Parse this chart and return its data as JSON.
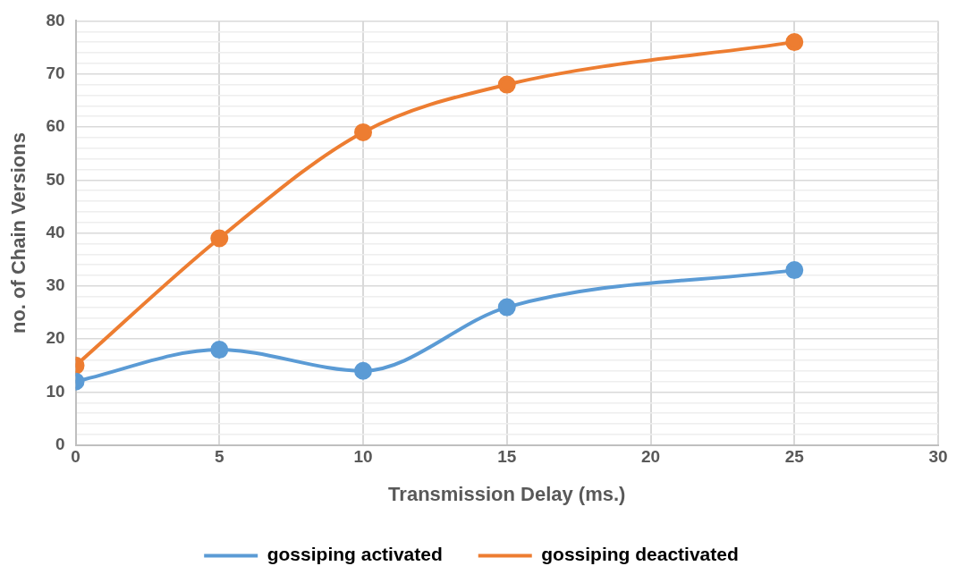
{
  "chart_data": {
    "type": "line",
    "xlabel": "Transmission Delay (ms.)",
    "ylabel": "no. of Chain Versions",
    "x": [
      0,
      5,
      10,
      15,
      25
    ],
    "series": [
      {
        "name": "gossiping activated",
        "color": "#5b9bd5",
        "values": [
          12,
          18,
          14,
          26,
          33
        ]
      },
      {
        "name": "gossiping deactivated",
        "color": "#ed7d31",
        "values": [
          15,
          39,
          59,
          68,
          76
        ]
      }
    ],
    "xlim": [
      0,
      30
    ],
    "xticks": [
      0,
      5,
      10,
      15,
      20,
      25,
      30
    ],
    "ylim": [
      0,
      80
    ],
    "yticks": [
      0,
      {
        "value": 2,
        "label": null
      },
      {
        "value": 4,
        "label": null
      },
      {
        "value": 6,
        "label": null
      },
      {
        "value": 8,
        "label": null
      },
      10,
      {
        "value": 12,
        "label": null
      },
      {
        "value": 14,
        "label": null
      },
      {
        "value": 16,
        "label": null
      },
      {
        "value": 18,
        "label": null
      },
      20,
      {
        "value": 22,
        "label": null
      },
      {
        "value": 24,
        "label": null
      },
      {
        "value": 26,
        "label": null
      },
      {
        "value": 28,
        "label": null
      },
      30,
      {
        "value": 32,
        "label": null
      },
      {
        "value": 34,
        "label": null
      },
      {
        "value": 36,
        "label": null
      },
      {
        "value": 38,
        "label": null
      },
      40,
      {
        "value": 42,
        "label": null
      },
      {
        "value": 44,
        "label": null
      },
      {
        "value": 46,
        "label": null
      },
      {
        "value": 48,
        "label": null
      },
      50,
      {
        "value": 52,
        "label": null
      },
      {
        "value": 54,
        "label": null
      },
      {
        "value": 56,
        "label": null
      },
      {
        "value": 58,
        "label": null
      },
      60,
      {
        "value": 62,
        "label": null
      },
      {
        "value": 64,
        "label": null
      },
      {
        "value": 66,
        "label": null
      },
      {
        "value": 68,
        "label": null
      },
      70,
      {
        "value": 72,
        "label": null
      },
      {
        "value": 74,
        "label": null
      },
      {
        "value": 76,
        "label": null
      },
      {
        "value": 78,
        "label": null
      },
      80
    ],
    "grid": true,
    "legend": "bottom",
    "marker": "circle",
    "line_style": "solid"
  }
}
